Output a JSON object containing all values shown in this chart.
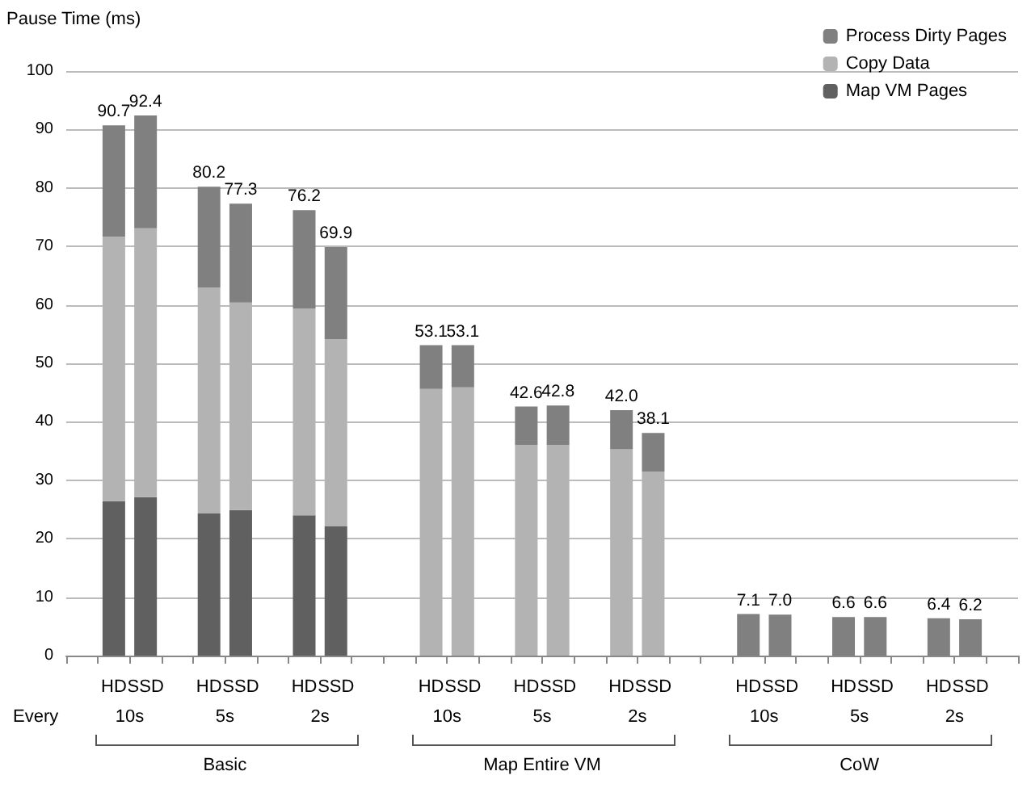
{
  "chart_data": {
    "type": "bar",
    "stacked": true,
    "ylabel": "Pause Time (ms)",
    "categories": [
      null,
      "HD",
      "SSD",
      null,
      "HD",
      "SSD",
      null,
      "HD",
      "SSD",
      null,
      null,
      "HD",
      "SSD",
      null,
      "HD",
      "SSD",
      null,
      "HD",
      "SSD",
      null,
      null,
      "HD",
      "SSD",
      null,
      "HD",
      "SSD",
      null,
      "HD",
      "SSD",
      null
    ],
    "series": [
      {
        "name": "Map VM Pages",
        "color": "#606060",
        "values": [
          null,
          26.4,
          27.1,
          null,
          24.3,
          24.9,
          null,
          24.0,
          22.1,
          null,
          null,
          null,
          null,
          null,
          null,
          null,
          null,
          null,
          null,
          null,
          null,
          null,
          null,
          null,
          null,
          null,
          null,
          null,
          null,
          null
        ]
      },
      {
        "name": "Copy Data",
        "color": "#b3b3b3",
        "values": [
          null,
          45.3,
          46.0,
          null,
          38.7,
          35.5,
          null,
          35.4,
          32.0,
          null,
          null,
          45.6,
          45.9,
          null,
          36.0,
          36.0,
          null,
          35.3,
          31.5,
          null,
          null,
          null,
          null,
          null,
          null,
          null,
          null,
          null,
          null,
          null
        ]
      },
      {
        "name": "Process Dirty Pages",
        "color": "#808080",
        "values": [
          null,
          19.0,
          19.3,
          null,
          17.2,
          16.9,
          null,
          16.8,
          15.8,
          null,
          null,
          7.5,
          7.2,
          null,
          6.6,
          6.8,
          null,
          6.7,
          6.6,
          null,
          null,
          7.1,
          7.0,
          null,
          6.6,
          6.6,
          null,
          6.4,
          6.2,
          null
        ]
      }
    ],
    "totals": [
      null,
      "90.7",
      "92.4",
      null,
      "80.2",
      "77.3",
      null,
      "76.2",
      "69.9",
      null,
      null,
      "53.1",
      "53.1",
      null,
      "42.6",
      "42.8",
      null,
      "42.0",
      "38.1",
      null,
      null,
      "7.1",
      "7.0",
      null,
      "6.6",
      "6.6",
      null,
      "6.4",
      "6.2",
      null
    ],
    "ylim": [
      0,
      100
    ],
    "yticks": [
      0,
      10,
      20,
      30,
      40,
      50,
      60,
      70,
      80,
      90,
      100
    ],
    "grid": "y",
    "legend": "top right",
    "annotations": [
      "Every",
      "10s",
      "5s",
      "2s",
      "Basic",
      "10s",
      "5s",
      "2s",
      "Map Entire VM",
      "10s",
      "5s",
      "2s",
      "CoW"
    ]
  }
}
